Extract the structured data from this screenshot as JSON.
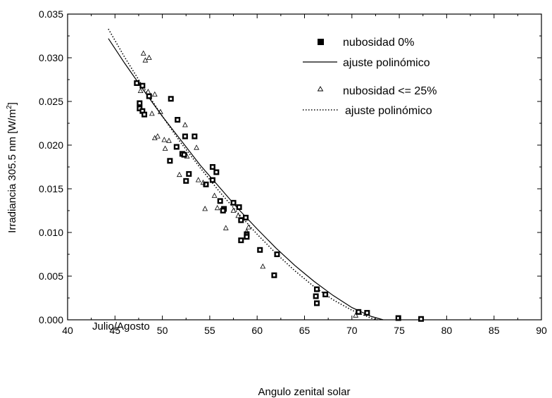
{
  "chart_data": {
    "type": "scatter",
    "title": "",
    "xlabel": "Angulo zenital solar",
    "ylabel": "Irradiancia 305.5 nm [W/m2]",
    "ylabel_prefix": "Irradiancia 305.5 nm [W/m",
    "ylabel_sup": "2",
    "ylabel_suffix": "]",
    "xlim": [
      40,
      90
    ],
    "ylim": [
      0.0,
      0.035
    ],
    "x_ticks": [
      "40",
      "45",
      "50",
      "55",
      "60",
      "65",
      "70",
      "75",
      "80",
      "85",
      "90"
    ],
    "y_ticks": [
      "0.000",
      "0.005",
      "0.010",
      "0.015",
      "0.020",
      "0.025",
      "0.030",
      "0.035"
    ],
    "grid": false,
    "legend_position": "top-right",
    "annotation": "Julio/Agosto",
    "series": [
      {
        "name": "nubosidad 0%",
        "marker": "square",
        "points": [
          [
            47.3,
            0.0271
          ],
          [
            47.9,
            0.0268
          ],
          [
            47.6,
            0.0248
          ],
          [
            47.6,
            0.0242
          ],
          [
            47.9,
            0.0239
          ],
          [
            48.1,
            0.0235
          ],
          [
            48.6,
            0.0256
          ],
          [
            50.9,
            0.0253
          ],
          [
            51.6,
            0.0229
          ],
          [
            51.5,
            0.0198
          ],
          [
            52.4,
            0.021
          ],
          [
            53.4,
            0.021
          ],
          [
            52.1,
            0.019
          ],
          [
            52.3,
            0.0189
          ],
          [
            50.8,
            0.0182
          ],
          [
            52.8,
            0.0167
          ],
          [
            52.5,
            0.0159
          ],
          [
            55.3,
            0.0175
          ],
          [
            55.7,
            0.0169
          ],
          [
            55.3,
            0.016
          ],
          [
            54.6,
            0.0155
          ],
          [
            56.1,
            0.0136
          ],
          [
            56.5,
            0.0127
          ],
          [
            56.4,
            0.0125
          ],
          [
            57.5,
            0.0134
          ],
          [
            58.1,
            0.0129
          ],
          [
            58.3,
            0.0114
          ],
          [
            58.8,
            0.0117
          ],
          [
            58.3,
            0.0091
          ],
          [
            58.9,
            0.0098
          ],
          [
            58.9,
            0.0095
          ],
          [
            60.3,
            0.008
          ],
          [
            62.1,
            0.0075
          ],
          [
            61.8,
            0.0051
          ],
          [
            66.3,
            0.0035
          ],
          [
            66.2,
            0.0027
          ],
          [
            66.3,
            0.0019
          ],
          [
            67.2,
            0.0029
          ],
          [
            70.7,
            0.0009
          ],
          [
            71.6,
            0.0008
          ],
          [
            74.9,
            0.0002
          ],
          [
            77.3,
            0.0001
          ]
        ]
      },
      {
        "name": "ajuste polinómico",
        "style": "solid-line",
        "fit_points": [
          [
            44.3,
            0.0322
          ],
          [
            46.0,
            0.0294
          ],
          [
            48.0,
            0.0263
          ],
          [
            50.0,
            0.0233
          ],
          [
            52.0,
            0.0205
          ],
          [
            54.0,
            0.0177
          ],
          [
            56.0,
            0.0152
          ],
          [
            58.0,
            0.0127
          ],
          [
            60.0,
            0.0104
          ],
          [
            62.0,
            0.0082
          ],
          [
            64.0,
            0.0062
          ],
          [
            66.0,
            0.0044
          ],
          [
            68.0,
            0.0028
          ],
          [
            70.0,
            0.0014
          ],
          [
            72.0,
            0.0004
          ],
          [
            73.3,
            0.0
          ]
        ]
      },
      {
        "name": "nubosidad <= 25%",
        "marker": "triangle-open",
        "points": [
          [
            48.0,
            0.0305
          ],
          [
            48.6,
            0.03
          ],
          [
            48.2,
            0.0297
          ],
          [
            48.5,
            0.0261
          ],
          [
            47.7,
            0.0262
          ],
          [
            49.2,
            0.0258
          ],
          [
            49.8,
            0.0238
          ],
          [
            48.9,
            0.0236
          ],
          [
            49.2,
            0.0208
          ],
          [
            49.5,
            0.021
          ],
          [
            50.2,
            0.0206
          ],
          [
            50.7,
            0.0205
          ],
          [
            50.3,
            0.0196
          ],
          [
            52.4,
            0.0223
          ],
          [
            53.6,
            0.0197
          ],
          [
            52.6,
            0.0187
          ],
          [
            51.8,
            0.0166
          ],
          [
            53.8,
            0.016
          ],
          [
            54.3,
            0.0157
          ],
          [
            54.5,
            0.0127
          ],
          [
            55.5,
            0.0142
          ],
          [
            55.8,
            0.0128
          ],
          [
            56.7,
            0.0105
          ],
          [
            57.5,
            0.0125
          ],
          [
            58.0,
            0.0119
          ],
          [
            59.1,
            0.0106
          ],
          [
            58.9,
            0.0101
          ],
          [
            60.6,
            0.0061
          ],
          [
            70.4,
            0.0005
          ]
        ]
      },
      {
        "name": "ajuste polinómico",
        "style": "dotted-line",
        "fit_points": [
          [
            44.3,
            0.0333
          ],
          [
            46.0,
            0.0301
          ],
          [
            48.0,
            0.0266
          ],
          [
            50.0,
            0.0233
          ],
          [
            52.0,
            0.0202
          ],
          [
            54.0,
            0.0174
          ],
          [
            56.0,
            0.0147
          ],
          [
            58.0,
            0.0122
          ],
          [
            60.0,
            0.0098
          ],
          [
            62.0,
            0.0076
          ],
          [
            64.0,
            0.0056
          ],
          [
            66.0,
            0.0038
          ],
          [
            68.0,
            0.0023
          ],
          [
            70.0,
            0.0011
          ],
          [
            72.0,
            0.0002
          ],
          [
            72.7,
            0.0
          ]
        ]
      }
    ]
  }
}
